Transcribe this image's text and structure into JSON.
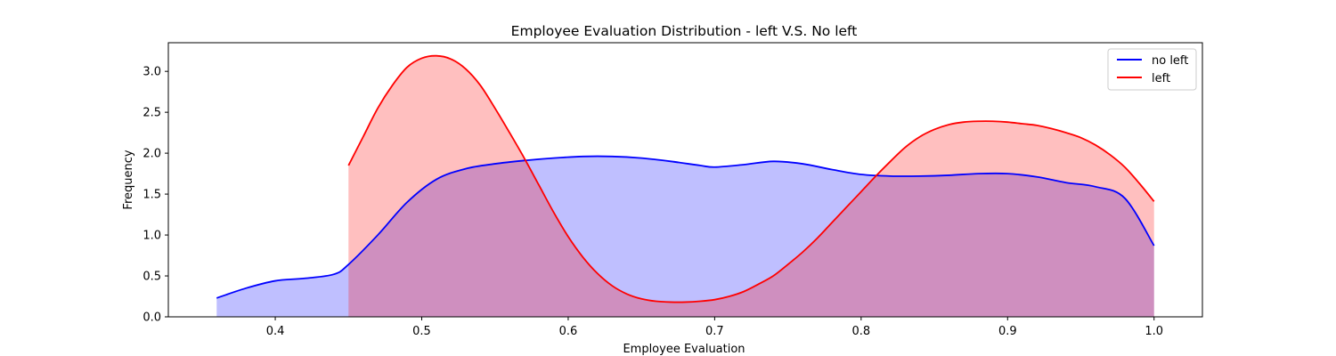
{
  "chart_data": {
    "type": "area",
    "title": "Employee Evaluation Distribution - left V.S. No left",
    "xlabel": "Employee Evaluation",
    "ylabel": "Frequency",
    "xlim": [
      0.327,
      1.033
    ],
    "ylim": [
      0.0,
      3.35
    ],
    "xticks": [
      0.4,
      0.5,
      0.6,
      0.7,
      0.8,
      0.9,
      1.0
    ],
    "xtick_labels": [
      "0.4",
      "0.5",
      "0.6",
      "0.7",
      "0.8",
      "0.9",
      "1.0"
    ],
    "yticks": [
      0.0,
      0.5,
      1.0,
      1.5,
      2.0,
      2.5,
      3.0
    ],
    "ytick_labels": [
      "0.0",
      "0.5",
      "1.0",
      "1.5",
      "2.0",
      "2.5",
      "3.0"
    ],
    "grid": false,
    "legend_position": "top-right",
    "series": [
      {
        "name": "no left",
        "color": "#0000ff",
        "fill": "#0000ff",
        "x": [
          0.36,
          0.38,
          0.4,
          0.42,
          0.44,
          0.45,
          0.47,
          0.49,
          0.51,
          0.53,
          0.55,
          0.57,
          0.59,
          0.61,
          0.63,
          0.65,
          0.67,
          0.69,
          0.7,
          0.72,
          0.74,
          0.76,
          0.78,
          0.8,
          0.82,
          0.84,
          0.86,
          0.88,
          0.9,
          0.92,
          0.94,
          0.96,
          0.98,
          1.0
        ],
        "y": [
          0.23,
          0.35,
          0.44,
          0.47,
          0.52,
          0.64,
          1.0,
          1.4,
          1.68,
          1.81,
          1.87,
          1.91,
          1.94,
          1.96,
          1.96,
          1.94,
          1.9,
          1.85,
          1.83,
          1.86,
          1.9,
          1.87,
          1.8,
          1.74,
          1.72,
          1.72,
          1.73,
          1.75,
          1.75,
          1.71,
          1.64,
          1.59,
          1.45,
          0.87
        ]
      },
      {
        "name": "left",
        "color": "#ff0000",
        "fill": "#ff0000",
        "x": [
          0.45,
          0.46,
          0.47,
          0.48,
          0.49,
          0.5,
          0.51,
          0.52,
          0.53,
          0.54,
          0.55,
          0.56,
          0.57,
          0.58,
          0.59,
          0.6,
          0.61,
          0.62,
          0.63,
          0.64,
          0.65,
          0.66,
          0.67,
          0.68,
          0.69,
          0.7,
          0.71,
          0.72,
          0.73,
          0.74,
          0.75,
          0.76,
          0.77,
          0.78,
          0.79,
          0.8,
          0.81,
          0.82,
          0.83,
          0.84,
          0.85,
          0.86,
          0.87,
          0.88,
          0.89,
          0.9,
          0.91,
          0.92,
          0.93,
          0.94,
          0.95,
          0.96,
          0.97,
          0.98,
          0.99,
          1.0
        ],
        "y": [
          1.85,
          2.2,
          2.55,
          2.83,
          3.05,
          3.16,
          3.19,
          3.15,
          3.03,
          2.83,
          2.55,
          2.25,
          1.94,
          1.61,
          1.28,
          0.98,
          0.73,
          0.53,
          0.38,
          0.28,
          0.22,
          0.19,
          0.18,
          0.18,
          0.19,
          0.21,
          0.25,
          0.31,
          0.4,
          0.5,
          0.64,
          0.79,
          0.96,
          1.15,
          1.34,
          1.53,
          1.72,
          1.9,
          2.07,
          2.2,
          2.29,
          2.35,
          2.38,
          2.39,
          2.39,
          2.38,
          2.36,
          2.34,
          2.3,
          2.25,
          2.19,
          2.1,
          1.98,
          1.83,
          1.63,
          1.41
        ]
      }
    ]
  }
}
